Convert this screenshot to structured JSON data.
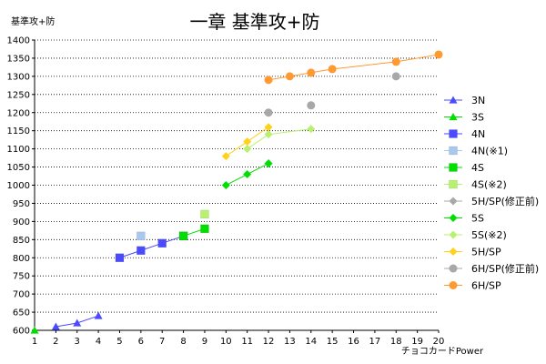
{
  "chart_data": {
    "type": "scatter",
    "title": "一章 基準攻+防",
    "ylabel": "基準攻+防",
    "xlabel": "チョコカードPower",
    "xlim": [
      1,
      20
    ],
    "ylim": [
      600,
      1400
    ],
    "xticks": [
      1,
      2,
      3,
      4,
      5,
      6,
      7,
      8,
      9,
      10,
      11,
      12,
      13,
      14,
      15,
      16,
      17,
      18,
      19,
      20
    ],
    "yticks": [
      600,
      650,
      700,
      750,
      800,
      850,
      900,
      950,
      1000,
      1050,
      1100,
      1150,
      1200,
      1250,
      1300,
      1350,
      1400
    ],
    "grid": "horizontal-dotted",
    "legend": "right",
    "series": [
      {
        "name": "3N",
        "marker": "triangle",
        "color": "#4a4aff",
        "line": true,
        "points": [
          [
            2,
            610
          ],
          [
            3,
            620
          ],
          [
            4,
            640
          ]
        ]
      },
      {
        "name": "3S",
        "marker": "triangle",
        "color": "#00e000",
        "line": false,
        "points": [
          [
            1,
            600
          ]
        ]
      },
      {
        "name": "4N",
        "marker": "square",
        "color": "#4a4aff",
        "line": true,
        "points": [
          [
            5,
            800
          ],
          [
            6,
            820
          ],
          [
            7,
            840
          ],
          [
            8,
            860
          ]
        ]
      },
      {
        "name": "4N(※1)",
        "marker": "square",
        "color": "#a8c8f0",
        "line": false,
        "points": [
          [
            6,
            860
          ]
        ]
      },
      {
        "name": "4S",
        "marker": "square",
        "color": "#00e000",
        "line": true,
        "points": [
          [
            8,
            860
          ],
          [
            9,
            880
          ]
        ]
      },
      {
        "name": "4S(※2)",
        "marker": "square",
        "color": "#b8f070",
        "line": false,
        "points": [
          [
            9,
            920
          ]
        ]
      },
      {
        "name": "5H/SP(修正前)",
        "marker": "diamond",
        "color": "#a8a8a8",
        "line": false,
        "points": [
          [
            12,
            1060
          ]
        ]
      },
      {
        "name": "5S",
        "marker": "diamond",
        "color": "#00e000",
        "line": true,
        "points": [
          [
            10,
            1000
          ],
          [
            11,
            1030
          ],
          [
            12,
            1060
          ]
        ]
      },
      {
        "name": "5S(※2)",
        "marker": "diamond",
        "color": "#b8f070",
        "line": true,
        "points": [
          [
            11,
            1100
          ],
          [
            12,
            1140
          ],
          [
            14,
            1155
          ]
        ]
      },
      {
        "name": "5H/SP",
        "marker": "diamond",
        "color": "#ffd11a",
        "line": true,
        "points": [
          [
            10,
            1080
          ],
          [
            11,
            1120
          ],
          [
            12,
            1160
          ]
        ]
      },
      {
        "name": "6H/SP(修正前)",
        "marker": "circle",
        "color": "#a8a8a8",
        "line": false,
        "points": [
          [
            12,
            1200
          ],
          [
            14,
            1220
          ],
          [
            18,
            1300
          ]
        ]
      },
      {
        "name": "6H/SP",
        "marker": "circle",
        "color": "#ff9933",
        "line": true,
        "points": [
          [
            12,
            1290
          ],
          [
            13,
            1300
          ],
          [
            14,
            1310
          ],
          [
            15,
            1320
          ],
          [
            18,
            1340
          ],
          [
            20,
            1360
          ]
        ]
      }
    ]
  }
}
